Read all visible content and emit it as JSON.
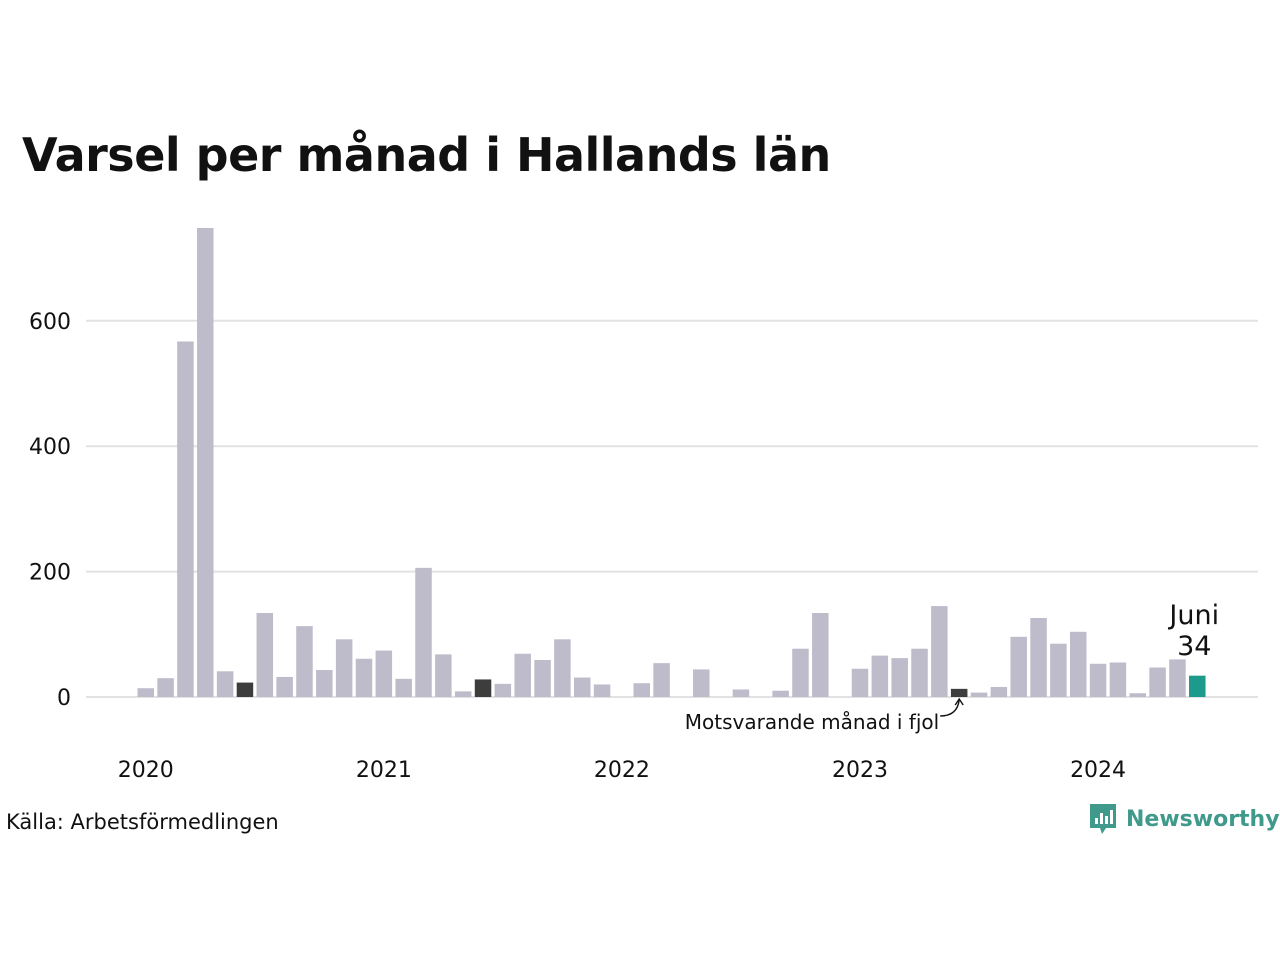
{
  "title": "Varsel per månad i Hallands län",
  "source": "Källa: Arbetsförmedlingen",
  "brand": "Newsworthy",
  "colors": {
    "bar": "#bebbcb",
    "previous_year": "#3d3d3d",
    "highlight": "#1c9a8b",
    "grid": "#e2e2e2",
    "brand": "#3f9a8c"
  },
  "annotations": {
    "current_month": "Juni",
    "current_value": "34",
    "previous_year": "Motsvarande månad i fjol"
  },
  "chart_data": {
    "type": "bar",
    "title": "Varsel per månad i Hallands län",
    "ylim": [
      0,
      750
    ],
    "y_ticks": [
      0,
      200,
      400,
      600
    ],
    "x_ticks": [
      "2020",
      "2021",
      "2022",
      "2023",
      "2024"
    ],
    "grid": true,
    "categories": [
      "2020-01",
      "2020-02",
      "2020-03",
      "2020-04",
      "2020-05",
      "2020-06",
      "2020-07",
      "2020-08",
      "2020-09",
      "2020-10",
      "2020-11",
      "2020-12",
      "2021-01",
      "2021-02",
      "2021-03",
      "2021-04",
      "2021-05",
      "2021-06",
      "2021-07",
      "2021-08",
      "2021-09",
      "2021-10",
      "2021-11",
      "2021-12",
      "2022-01",
      "2022-02",
      "2022-03",
      "2022-04",
      "2022-05",
      "2022-06",
      "2022-07",
      "2022-08",
      "2022-09",
      "2022-10",
      "2022-11",
      "2022-12",
      "2023-01",
      "2023-02",
      "2023-03",
      "2023-04",
      "2023-05",
      "2023-06",
      "2023-07",
      "2023-08",
      "2023-09",
      "2023-10",
      "2023-11",
      "2023-12",
      "2024-01",
      "2024-02",
      "2024-03",
      "2024-04",
      "2024-05",
      "2024-06"
    ],
    "values": [
      14,
      30,
      567,
      748,
      41,
      23,
      134,
      32,
      113,
      43,
      92,
      61,
      74,
      29,
      206,
      68,
      9,
      28,
      21,
      69,
      59,
      92,
      31,
      20,
      0,
      22,
      54,
      0,
      44,
      0,
      12,
      0,
      10,
      77,
      134,
      0,
      45,
      66,
      62,
      77,
      145,
      13,
      7,
      16,
      96,
      126,
      85,
      104,
      53,
      55,
      6,
      47,
      60,
      34
    ],
    "highlight_previous_year_index": [
      5,
      17,
      41
    ],
    "highlight_current_index": 53
  }
}
